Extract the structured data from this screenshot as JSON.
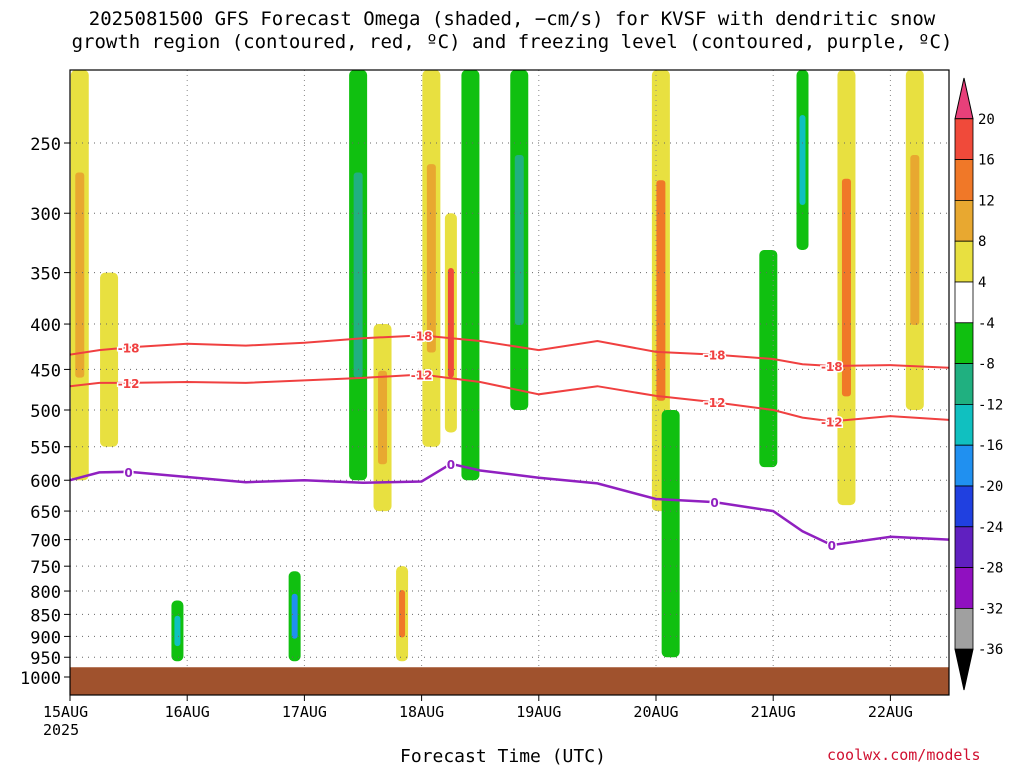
{
  "title_line1": "2025081500 GFS Forecast Omega (shaded, −cm/s) for KVSF with dendritic snow",
  "title_line2": "growth region (contoured, red, ºC) and freezing level (contoured, purple, ºC)",
  "credit": "coolwx.com/models",
  "chart_data": {
    "type": "heatmap",
    "title": "2025081500 GFS Forecast Omega (shaded, −cm/s) for KVSF with dendritic snow growth region (contoured, red, ºC) and freezing level (contoured, purple, ºC)",
    "xlabel": "Forecast Time (UTC)",
    "ylabel": "",
    "x_tick_labels": [
      "15AUG\n2025",
      "16AUG",
      "17AUG",
      "18AUG",
      "19AUG",
      "20AUG",
      "21AUG",
      "22AUG"
    ],
    "x_tick_hours": [
      0,
      24,
      48,
      72,
      96,
      120,
      144,
      168
    ],
    "x_range_hours": [
      0,
      180
    ],
    "y_tick_labels": [
      "250",
      "300",
      "350",
      "400",
      "450",
      "500",
      "550",
      "600",
      "650",
      "700",
      "750",
      "800",
      "850",
      "900",
      "950",
      "1000"
    ],
    "y_ticks_hpa": [
      250,
      300,
      350,
      400,
      450,
      500,
      550,
      600,
      650,
      700,
      750,
      800,
      850,
      900,
      950,
      1000
    ],
    "y_range_hpa": [
      200,
      1000
    ],
    "grid": true,
    "colorbar": {
      "labels": [
        "20",
        "16",
        "12",
        "8",
        "4",
        "-4",
        "-8",
        "-12",
        "-16",
        "-20",
        "-24",
        "-28",
        "-32",
        "-36"
      ],
      "colors": [
        "#e8407a",
        "#f04a3a",
        "#f07828",
        "#e8a830",
        "#e8e040",
        "#ffffff",
        "#10c010",
        "#20b080",
        "#10c0c0",
        "#2090f0",
        "#2040e0",
        "#6020c0",
        "#9010c0",
        "#a0a0a0",
        "#000000"
      ]
    },
    "dgz_contours": [
      {
        "label": "-18",
        "color": "#f04040",
        "points": [
          [
            0,
            433
          ],
          [
            6,
            428
          ],
          [
            12,
            425
          ],
          [
            24,
            421
          ],
          [
            36,
            423
          ],
          [
            48,
            420
          ],
          [
            60,
            415
          ],
          [
            72,
            412
          ],
          [
            84,
            418
          ],
          [
            96,
            428
          ],
          [
            108,
            418
          ],
          [
            120,
            430
          ],
          [
            132,
            433
          ],
          [
            144,
            438
          ],
          [
            150,
            444
          ],
          [
            156,
            446
          ],
          [
            168,
            445
          ],
          [
            180,
            448
          ]
        ]
      },
      {
        "label": "-12",
        "color": "#f04040",
        "points": [
          [
            0,
            470
          ],
          [
            6,
            466
          ],
          [
            12,
            466
          ],
          [
            24,
            465
          ],
          [
            36,
            466
          ],
          [
            48,
            463
          ],
          [
            60,
            460
          ],
          [
            72,
            456
          ],
          [
            84,
            465
          ],
          [
            96,
            480
          ],
          [
            108,
            470
          ],
          [
            120,
            482
          ],
          [
            132,
            490
          ],
          [
            144,
            500
          ],
          [
            150,
            510
          ],
          [
            156,
            515
          ],
          [
            168,
            508
          ],
          [
            180,
            513
          ]
        ]
      }
    ],
    "freezing_level": {
      "label": "0",
      "color": "#9020c0",
      "points": [
        [
          0,
          600
        ],
        [
          6,
          588
        ],
        [
          12,
          587
        ],
        [
          24,
          595
        ],
        [
          36,
          603
        ],
        [
          48,
          600
        ],
        [
          60,
          604
        ],
        [
          72,
          602
        ],
        [
          78,
          575
        ],
        [
          84,
          585
        ],
        [
          96,
          596
        ],
        [
          108,
          605
        ],
        [
          120,
          630
        ],
        [
          132,
          635
        ],
        [
          144,
          650
        ],
        [
          150,
          685
        ],
        [
          156,
          710
        ],
        [
          168,
          695
        ],
        [
          180,
          700
        ]
      ]
    },
    "ground": {
      "top_hpa": 975,
      "color": "#a0522d"
    },
    "omega_features": [
      {
        "center_hour": 2,
        "levels_hpa": [
          200,
          600
        ],
        "value": 8
      },
      {
        "center_hour": 8,
        "levels_hpa": [
          350,
          550
        ],
        "value": 6
      },
      {
        "center_hour": 22,
        "levels_hpa": [
          820,
          960
        ],
        "value": -14
      },
      {
        "center_hour": 46,
        "levels_hpa": [
          760,
          960
        ],
        "value": -18
      },
      {
        "center_hour": 59,
        "levels_hpa": [
          200,
          600
        ],
        "value": -10
      },
      {
        "center_hour": 64,
        "levels_hpa": [
          400,
          650
        ],
        "value": 8
      },
      {
        "center_hour": 68,
        "levels_hpa": [
          750,
          960
        ],
        "value": 14
      },
      {
        "center_hour": 74,
        "levels_hpa": [
          200,
          550
        ],
        "value": 10
      },
      {
        "center_hour": 78,
        "levels_hpa": [
          300,
          530
        ],
        "value": 18
      },
      {
        "center_hour": 82,
        "levels_hpa": [
          200,
          600
        ],
        "value": -8
      },
      {
        "center_hour": 92,
        "levels_hpa": [
          200,
          500
        ],
        "value": -12
      },
      {
        "center_hour": 121,
        "levels_hpa": [
          200,
          650
        ],
        "value": 12
      },
      {
        "center_hour": 123,
        "levels_hpa": [
          500,
          950
        ],
        "value": -8
      },
      {
        "center_hour": 143,
        "levels_hpa": [
          330,
          580
        ],
        "value": -8
      },
      {
        "center_hour": 150,
        "levels_hpa": [
          200,
          330
        ],
        "value": -14
      },
      {
        "center_hour": 159,
        "levels_hpa": [
          200,
          640
        ],
        "value": 12
      },
      {
        "center_hour": 173,
        "levels_hpa": [
          200,
          500
        ],
        "value": 10
      }
    ]
  }
}
